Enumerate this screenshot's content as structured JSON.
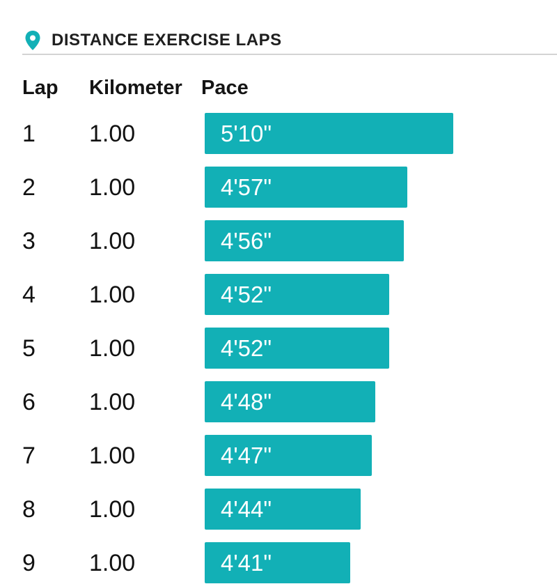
{
  "section": {
    "title": "DISTANCE EXERCISE LAPS",
    "icon": "location-pin-icon",
    "accent_color": "#12b0b6"
  },
  "columns": {
    "lap": "Lap",
    "kilometer": "Kilometer",
    "pace": "Pace"
  },
  "pace_scale": {
    "max_seconds": 310,
    "unit": "min/km"
  },
  "laps": [
    {
      "lap": "1",
      "km": "1.00",
      "pace": "5'10\"",
      "pace_seconds": 310
    },
    {
      "lap": "2",
      "km": "1.00",
      "pace": "4'57\"",
      "pace_seconds": 297
    },
    {
      "lap": "3",
      "km": "1.00",
      "pace": "4'56\"",
      "pace_seconds": 296
    },
    {
      "lap": "4",
      "km": "1.00",
      "pace": "4'52\"",
      "pace_seconds": 292
    },
    {
      "lap": "5",
      "km": "1.00",
      "pace": "4'52\"",
      "pace_seconds": 292
    },
    {
      "lap": "6",
      "km": "1.00",
      "pace": "4'48\"",
      "pace_seconds": 288
    },
    {
      "lap": "7",
      "km": "1.00",
      "pace": "4'47\"",
      "pace_seconds": 287
    },
    {
      "lap": "8",
      "km": "1.00",
      "pace": "4'44\"",
      "pace_seconds": 284
    },
    {
      "lap": "9",
      "km": "1.00",
      "pace": "4'41\"",
      "pace_seconds": 281
    }
  ]
}
